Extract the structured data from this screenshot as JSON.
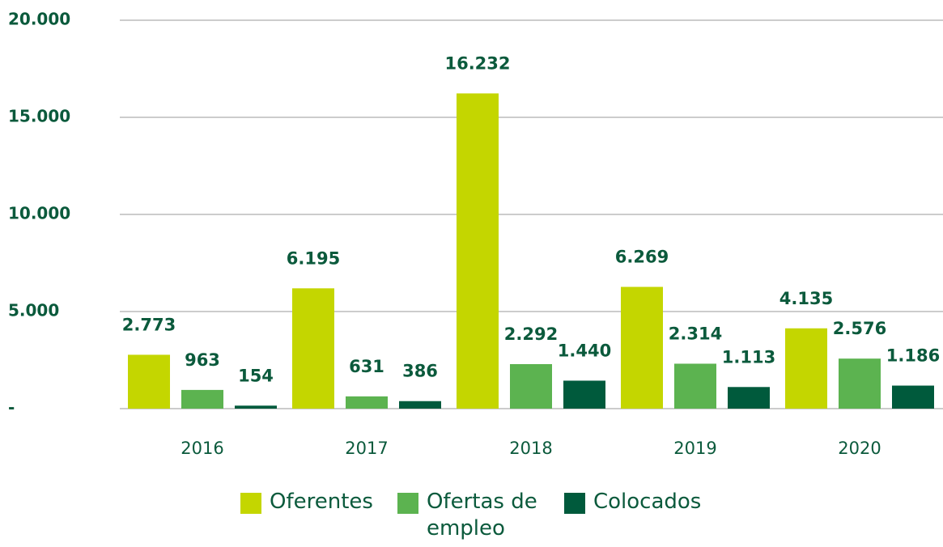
{
  "chart_data": {
    "type": "bar",
    "categories": [
      "2016",
      "2017",
      "2018",
      "2019",
      "2020"
    ],
    "series": [
      {
        "name": "Oferentes",
        "color": "#c4d600",
        "values": [
          2773,
          6195,
          16232,
          6269,
          4135
        ],
        "value_labels": [
          "2.773",
          "6.195",
          "16.232",
          "6.269",
          "4.135"
        ]
      },
      {
        "name": "Ofertas de empleo",
        "color": "#5cb350",
        "values": [
          963,
          631,
          2292,
          2314,
          2576
        ],
        "value_labels": [
          "963",
          "631",
          "2.292",
          "2.314",
          "2.576"
        ]
      },
      {
        "name": "Colocados",
        "color": "#005a3c",
        "values": [
          154,
          386,
          1440,
          1113,
          1186
        ],
        "value_labels": [
          "154",
          "386",
          "1.440",
          "1.113",
          "1.186"
        ]
      }
    ],
    "ylim": [
      0,
      20000
    ],
    "yticks": [
      {
        "value": 0,
        "label": "-"
      },
      {
        "value": 5000,
        "label": "5.000"
      },
      {
        "value": 10000,
        "label": "10.000"
      },
      {
        "value": 15000,
        "label": "15.000"
      },
      {
        "value": 20000,
        "label": "20.000"
      }
    ],
    "grid": true,
    "legend": "bottom"
  }
}
